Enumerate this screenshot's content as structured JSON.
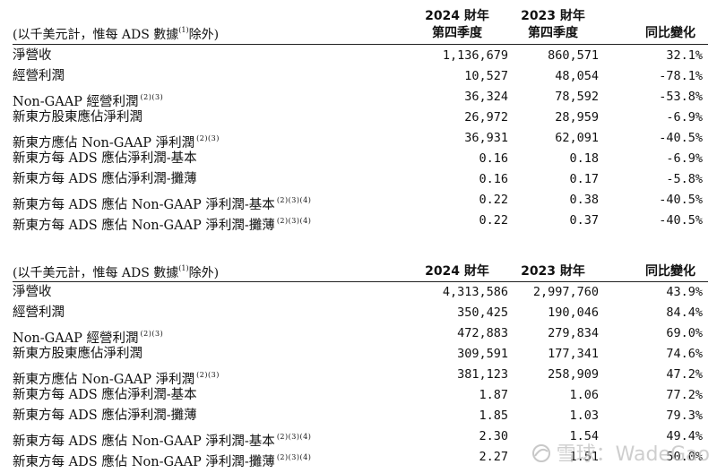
{
  "quarterly": {
    "unit_note": "(以千美元計，惟每 ADS 數據",
    "unit_note_sup": "(1)",
    "unit_note_end": "除外)",
    "col_current": [
      "2024 財年",
      "第四季度"
    ],
    "col_prior": [
      "2023 財年",
      "第四季度"
    ],
    "col_yoy": "同比變化",
    "rows": [
      {
        "label": "淨營收",
        "sup": "",
        "current": "1,136,679",
        "prior": "860,571",
        "yoy": "32.1%"
      },
      {
        "label": "經營利潤",
        "sup": "",
        "current": "10,527",
        "prior": "48,054",
        "yoy": "-78.1%"
      },
      {
        "label": "Non-GAAP 經營利潤",
        "sup": "(2)(3)",
        "current": "36,324",
        "prior": "78,592",
        "yoy": "-53.8%"
      },
      {
        "label": "新東方股東應佔淨利潤",
        "sup": "",
        "current": "26,972",
        "prior": "28,959",
        "yoy": "-6.9%"
      },
      {
        "label": "新東方應佔 Non-GAAP 淨利潤",
        "sup": "(2)(3)",
        "current": "36,931",
        "prior": "62,091",
        "yoy": "-40.5%"
      },
      {
        "label": "新東方每 ADS 應佔淨利潤-基本",
        "sup": "",
        "current": "0.16",
        "prior": "0.18",
        "yoy": "-6.9%"
      },
      {
        "label": "新東方每 ADS 應佔淨利潤-攤薄",
        "sup": "",
        "current": "0.16",
        "prior": "0.17",
        "yoy": "-5.8%"
      },
      {
        "label": "新東方每 ADS 應佔 Non-GAAP 淨利潤-基本",
        "sup": "(2)(3)(4)",
        "current": "0.22",
        "prior": "0.38",
        "yoy": "-40.5%"
      },
      {
        "label": "新東方每 ADS 應佔 Non-GAAP 淨利潤-攤薄",
        "sup": "(2)(3)(4)",
        "current": "0.22",
        "prior": "0.37",
        "yoy": "-40.5%"
      }
    ]
  },
  "annual": {
    "unit_note": "(以千美元計，惟每 ADS 數據",
    "unit_note_sup": "(1)",
    "unit_note_end": "除外)",
    "col_current": "2024 財年",
    "col_prior": "2023 財年",
    "col_yoy": "同比變化",
    "rows": [
      {
        "label": "淨營收",
        "sup": "",
        "current": "4,313,586",
        "prior": "2,997,760",
        "yoy": "43.9%"
      },
      {
        "label": "經營利潤",
        "sup": "",
        "current": "350,425",
        "prior": "190,046",
        "yoy": "84.4%"
      },
      {
        "label": "Non-GAAP 經營利潤",
        "sup": "(2)(3)",
        "current": "472,883",
        "prior": "279,834",
        "yoy": "69.0%"
      },
      {
        "label": "新東方股東應佔淨利潤",
        "sup": "",
        "current": "309,591",
        "prior": "177,341",
        "yoy": "74.6%"
      },
      {
        "label": "新東方應佔 Non-GAAP 淨利潤",
        "sup": "(2)(3)",
        "current": "381,123",
        "prior": "258,909",
        "yoy": "47.2%"
      },
      {
        "label": "新東方每 ADS 應佔淨利潤-基本",
        "sup": "",
        "current": "1.87",
        "prior": "1.06",
        "yoy": "77.2%"
      },
      {
        "label": "新東方每 ADS 應佔淨利潤-攤薄",
        "sup": "",
        "current": "1.85",
        "prior": "1.03",
        "yoy": "79.3%"
      },
      {
        "label": "新東方每 ADS 應佔 Non-GAAP 淨利潤-基本",
        "sup": "(2)(3)(4)",
        "current": "2.30",
        "prior": "1.54",
        "yoy": "49.4%"
      },
      {
        "label": "新東方每 ADS 應佔 Non-GAAP 淨利潤-攤薄",
        "sup": "(2)(3)(4)",
        "current": "2.27",
        "prior": "1.51",
        "yoy": "50.0%"
      }
    ]
  },
  "watermark": {
    "text": "雪球：WadeGao",
    "color": "#bebebe"
  }
}
